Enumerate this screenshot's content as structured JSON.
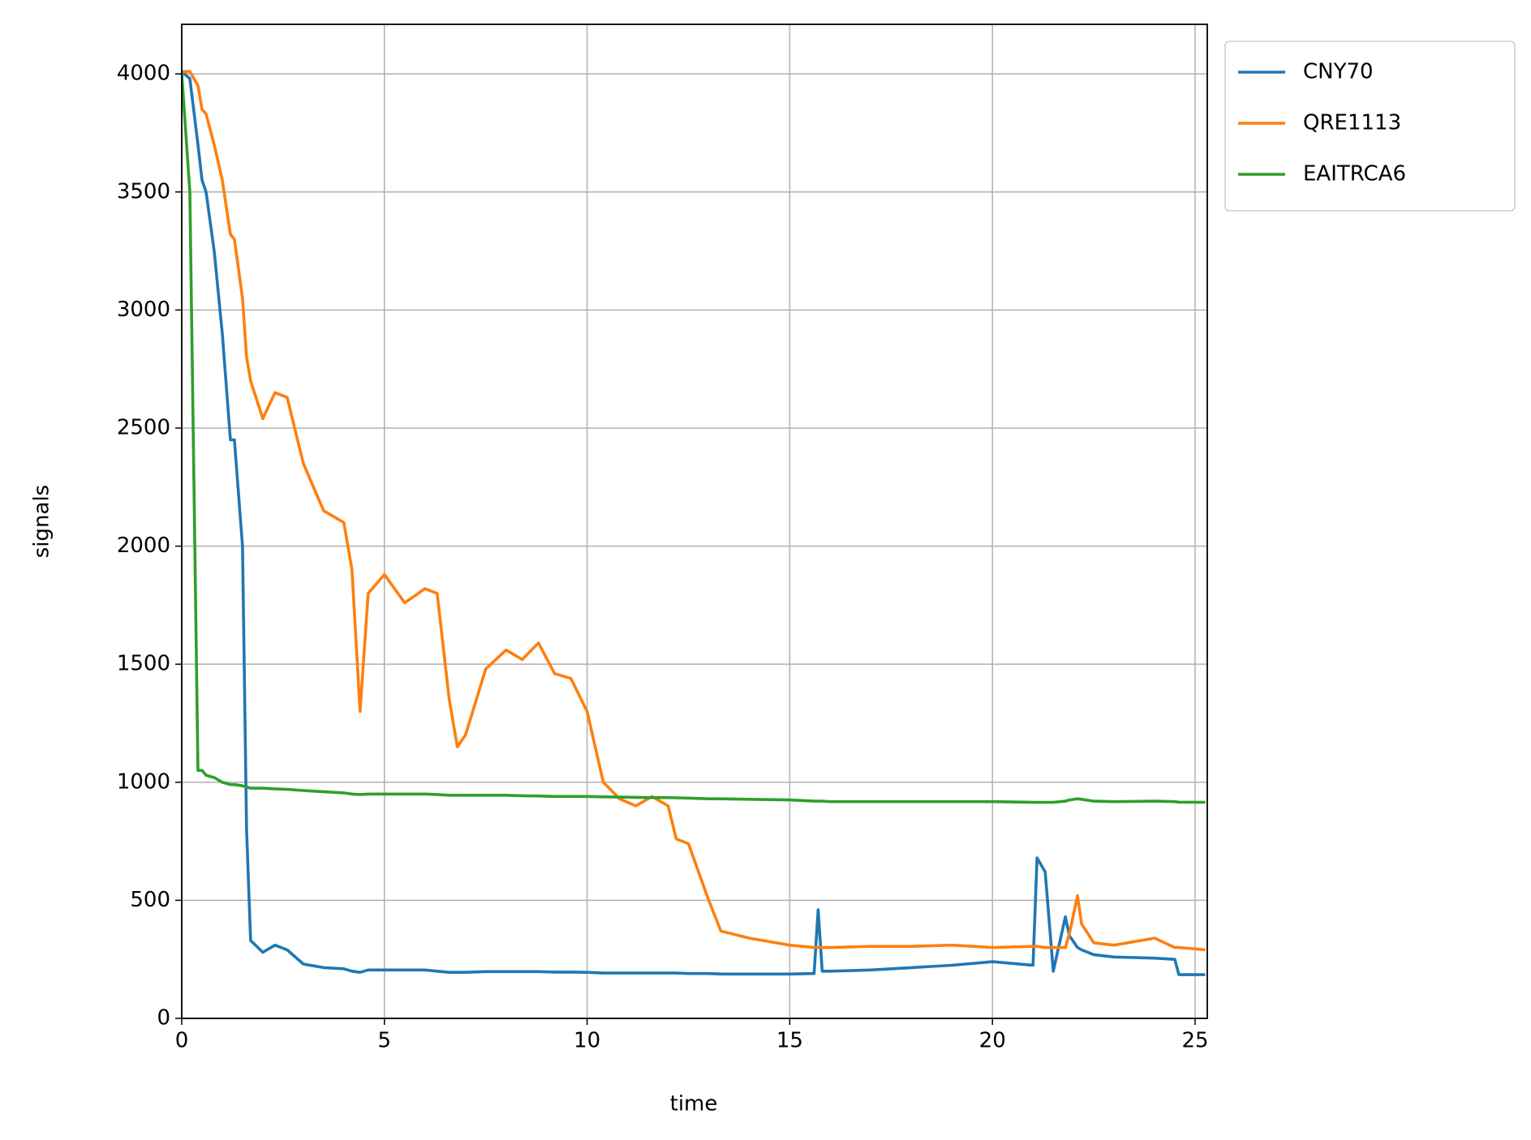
{
  "chart_data": {
    "type": "line",
    "x_label": "time",
    "y_label": "signals",
    "x": [
      0,
      0.2,
      0.4,
      0.5,
      0.6,
      0.8,
      1.0,
      1.2,
      1.3,
      1.5,
      1.6,
      1.7,
      2.0,
      2.3,
      2.6,
      3,
      3.5,
      4,
      4.2,
      4.4,
      4.6,
      5,
      5.5,
      6,
      6.3,
      6.6,
      6.8,
      7,
      7.5,
      8,
      8.4,
      8.8,
      9.2,
      9.6,
      10,
      10.4,
      10.8,
      11.2,
      11.6,
      12,
      12.2,
      12.5,
      13,
      13.3,
      14,
      15,
      15.6,
      15.7,
      15.8,
      16,
      17,
      18,
      19,
      20,
      21,
      21.1,
      21.3,
      21.5,
      21.8,
      21.9,
      22.1,
      22.2,
      22.5,
      23,
      24,
      24.5,
      24.6,
      25.25
    ],
    "series": [
      {
        "name": "CNY70",
        "color": "#1f77b4",
        "values": [
          4010,
          3980,
          3700,
          3550,
          3500,
          3250,
          2900,
          2450,
          2450,
          2000,
          800,
          330,
          280,
          310,
          290,
          230,
          215,
          210,
          200,
          195,
          205,
          205,
          205,
          205,
          200,
          195,
          195,
          195,
          198,
          198,
          198,
          198,
          196,
          196,
          195,
          192,
          192,
          192,
          192,
          192,
          192,
          190,
          190,
          188,
          188,
          188,
          190,
          460,
          200,
          200,
          205,
          215,
          225,
          240,
          225,
          680,
          620,
          200,
          430,
          350,
          300,
          290,
          270,
          260,
          255,
          250,
          185,
          185
        ]
      },
      {
        "name": "QRE1113",
        "color": "#ff7f0e",
        "values": [
          4010,
          4010,
          3950,
          3850,
          3830,
          3700,
          3550,
          3320,
          3300,
          3050,
          2800,
          2700,
          2540,
          2650,
          2630,
          2350,
          2150,
          2100,
          1900,
          1300,
          1800,
          1880,
          1760,
          1820,
          1800,
          1350,
          1150,
          1200,
          1480,
          1560,
          1520,
          1590,
          1460,
          1440,
          1300,
          1000,
          930,
          900,
          940,
          900,
          760,
          740,
          500,
          370,
          340,
          310,
          300,
          300,
          300,
          300,
          305,
          305,
          310,
          300,
          305,
          305,
          300,
          300,
          300,
          360,
          520,
          400,
          320,
          310,
          340,
          300,
          300,
          290
        ]
      },
      {
        "name": "EAITRCA6",
        "color": "#2ca02c",
        "values": [
          4000,
          3500,
          1050,
          1050,
          1030,
          1020,
          1000,
          990,
          990,
          985,
          980,
          975,
          975,
          972,
          970,
          965,
          960,
          955,
          950,
          948,
          950,
          950,
          950,
          950,
          948,
          945,
          945,
          945,
          945,
          945,
          943,
          942,
          940,
          940,
          940,
          938,
          937,
          936,
          935,
          935,
          934,
          933,
          930,
          930,
          928,
          925,
          920,
          920,
          920,
          918,
          918,
          918,
          918,
          918,
          915,
          915,
          915,
          915,
          920,
          925,
          930,
          928,
          920,
          918,
          920,
          918,
          916,
          915
        ]
      }
    ],
    "xlim": [
      0,
      25.3
    ],
    "ylim": [
      0,
      4210
    ],
    "xticks": [
      0,
      5,
      10,
      15,
      20,
      25
    ],
    "yticks": [
      0,
      500,
      1000,
      1500,
      2000,
      2500,
      3000,
      3500,
      4000
    ],
    "grid": true,
    "legend": "outside upper right"
  }
}
